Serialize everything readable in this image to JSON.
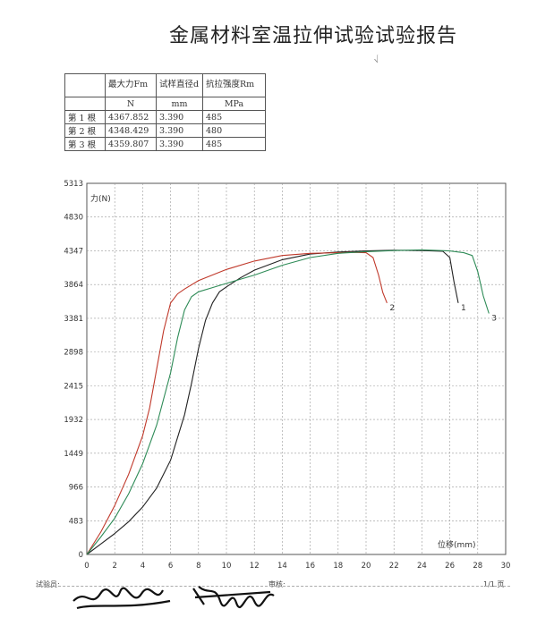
{
  "report": {
    "title": "金属材料室温拉伸试验试验报告",
    "corner_mark": "√"
  },
  "table": {
    "headers": [
      "",
      "最大力Fm",
      "试样直径d",
      "抗拉强度Rm"
    ],
    "units": [
      "",
      "N",
      "mm",
      "MPa"
    ],
    "rows": [
      {
        "label": "第 1 根",
        "fm": "4367.852",
        "d": "3.390",
        "rm": "485"
      },
      {
        "label": "第 2 根",
        "fm": "4348.429",
        "d": "3.390",
        "rm": "480"
      },
      {
        "label": "第 3 根",
        "fm": "4359.807",
        "d": "3.390",
        "rm": "485"
      }
    ]
  },
  "chart_data": {
    "type": "line",
    "ylabel": "力(N)",
    "xlabel": "位移(mm)",
    "xlim": [
      0,
      30
    ],
    "ylim": [
      0,
      5313
    ],
    "x_ticks": [
      0,
      2,
      4,
      6,
      8,
      10,
      12,
      14,
      16,
      18,
      20,
      22,
      24,
      26,
      28,
      30
    ],
    "x_tick_labels": [
      "0",
      "2",
      "4",
      "6",
      "8",
      "10",
      "12",
      "14",
      "16",
      "18",
      "20",
      "22",
      "24",
      "26",
      "28",
      "30"
    ],
    "y_ticks": [
      0,
      483,
      966,
      1449,
      1932,
      2415,
      2898,
      3381,
      3864,
      4347,
      4830,
      5313
    ],
    "y_tick_labels": [
      "0",
      "483",
      "966",
      "1449",
      "1932",
      "2415",
      "2898",
      "3381",
      "3864",
      "4347",
      "4830",
      "5313"
    ],
    "grid": "dashed",
    "series": [
      {
        "name": "1",
        "color": "#222222",
        "x": [
          0,
          1,
          2,
          3,
          4,
          5,
          6,
          7,
          7.5,
          8,
          8.5,
          9,
          9.5,
          10,
          11,
          12,
          14,
          16,
          18,
          20,
          22,
          24,
          25.5,
          26,
          26.3,
          26.6
        ],
        "y": [
          0,
          150,
          300,
          470,
          680,
          950,
          1350,
          2000,
          2450,
          2950,
          3350,
          3600,
          3760,
          3830,
          3960,
          4070,
          4220,
          4300,
          4330,
          4345,
          4355,
          4350,
          4340,
          4250,
          3900,
          3600
        ]
      },
      {
        "name": "2",
        "color": "#c0392b",
        "x": [
          0,
          1,
          2,
          3,
          4,
          4.5,
          5,
          5.5,
          6,
          6.5,
          7,
          8,
          10,
          12,
          14,
          16,
          18,
          19,
          20,
          20.5,
          20.9,
          21.2,
          21.5
        ],
        "y": [
          0,
          320,
          700,
          1150,
          1700,
          2100,
          2650,
          3200,
          3600,
          3730,
          3800,
          3920,
          4080,
          4200,
          4280,
          4310,
          4320,
          4325,
          4320,
          4250,
          4000,
          3750,
          3600
        ]
      },
      {
        "name": "3",
        "color": "#2e8b57",
        "x": [
          0,
          1,
          2,
          3,
          4,
          5,
          6,
          6.5,
          7,
          7.5,
          8,
          9,
          10,
          12,
          14,
          16,
          18,
          20,
          22,
          24,
          26,
          27,
          27.6,
          28,
          28.4,
          28.8
        ],
        "y": [
          0,
          250,
          520,
          870,
          1300,
          1850,
          2600,
          3100,
          3500,
          3690,
          3760,
          3820,
          3880,
          4000,
          4140,
          4250,
          4310,
          4335,
          4350,
          4360,
          4345,
          4320,
          4280,
          4050,
          3700,
          3450
        ]
      }
    ]
  },
  "footer": {
    "tester_label": "试验员:",
    "reviewer_label": "审核:",
    "page": "1/1 页"
  }
}
